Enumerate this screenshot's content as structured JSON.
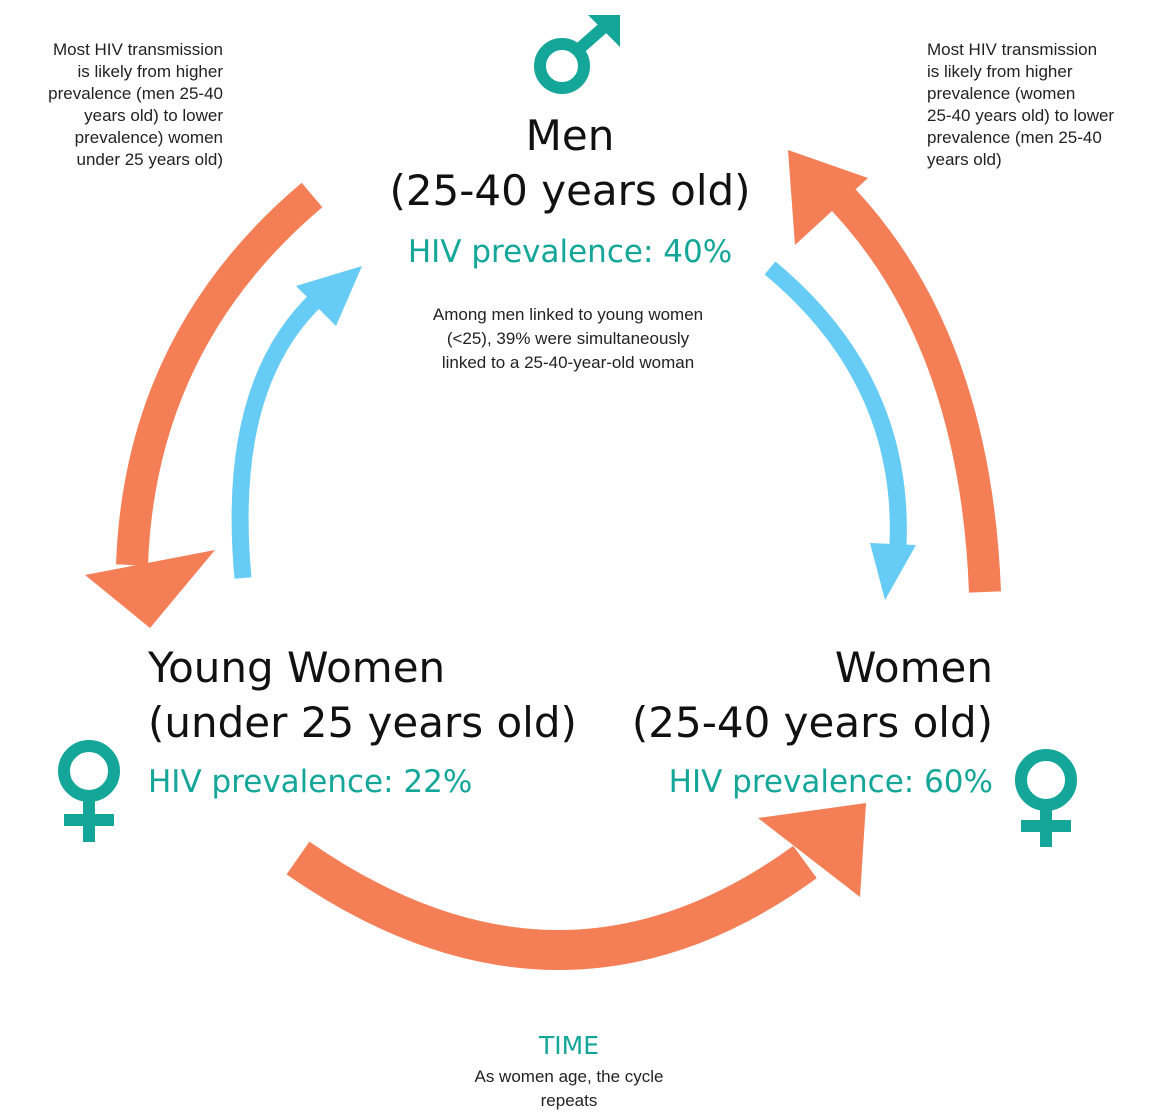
{
  "notes": {
    "left": [
      "Most HIV transmission",
      "is likely from higher",
      "prevalence (men 25-40",
      "years old) to lower",
      "prevalence) women",
      "under 25 years old)"
    ],
    "right": [
      "Most HIV transmission",
      "is likely from higher",
      "prevalence (women",
      "25-40 years old) to lower",
      "prevalence (men 25-40",
      "years old)"
    ],
    "center": [
      "Among men linked to young women",
      "(<25), 39% were simultaneously",
      "linked to a 25-40-year-old woman"
    ]
  },
  "nodes": [
    {
      "title": [
        "Men",
        "(25-40 years old)"
      ],
      "prevalence": "HIV prevalence: 40%"
    },
    {
      "title": [
        "Young Women",
        "(under 25 years old)"
      ],
      "prevalence": "HIV prevalence: 22%"
    },
    {
      "title": [
        "Women",
        "(25-40 years old)"
      ],
      "prevalence": "HIV prevalence: 60%"
    }
  ],
  "time": {
    "label": "TIME",
    "text": [
      "As women age, the cycle",
      "repeats"
    ]
  }
}
